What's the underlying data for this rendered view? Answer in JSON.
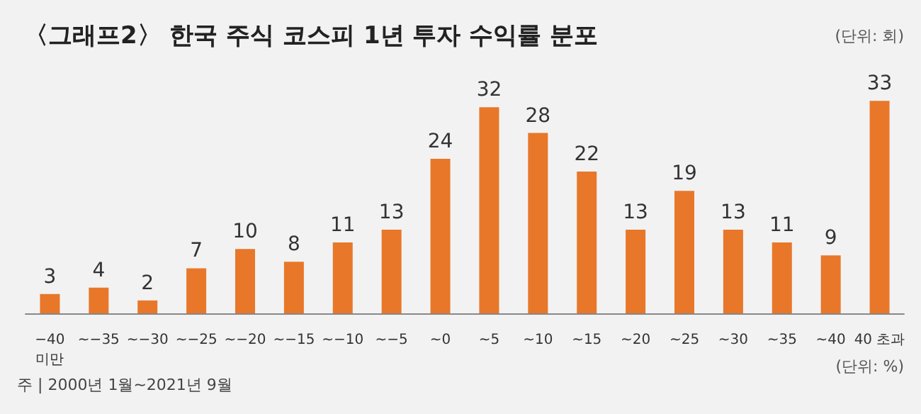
{
  "chart_data": {
    "type": "bar",
    "title": "〈그래프2〉 한국 주식 코스피 1년 투자 수익률 분포",
    "ylabel": "(단위: 회)",
    "xlabel": "(단위: %)",
    "categories": [
      "−40\n미만",
      "~−35",
      "~−30",
      "~−25",
      "~−20",
      "~−15",
      "~−10",
      "~−5",
      "~0",
      "~5",
      "~10",
      "~15",
      "~20",
      "~25",
      "~30",
      "~35",
      "~40",
      "40 초과"
    ],
    "values": [
      3,
      4,
      2,
      7,
      10,
      8,
      11,
      13,
      24,
      32,
      28,
      22,
      13,
      19,
      13,
      11,
      9,
      33
    ],
    "color": "#e8772a",
    "data_labels": true,
    "annotations": [
      "주 | 2000년 1월~2021년 9월"
    ]
  }
}
